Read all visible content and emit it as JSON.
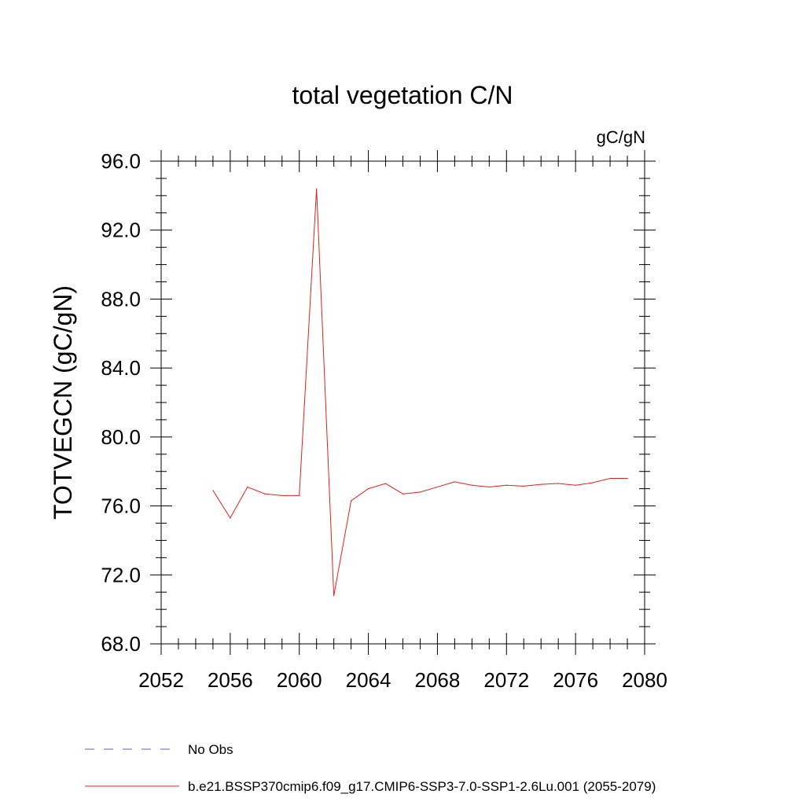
{
  "chart_data": {
    "type": "line",
    "title": "total vegetation C/N",
    "units_label": "gC/gN",
    "ylabel": "TOTVEGCN  (gC/gN)",
    "xlabel": "",
    "xlim": [
      2052,
      2080
    ],
    "ylim": [
      68,
      96
    ],
    "x_ticks": [
      2052,
      2056,
      2060,
      2064,
      2068,
      2072,
      2076,
      2080
    ],
    "x_tick_labels": [
      "2052",
      "2056",
      "2060",
      "2064",
      "2068",
      "2072",
      "2076",
      "2080"
    ],
    "y_ticks": [
      68,
      72,
      76,
      80,
      84,
      88,
      92,
      96
    ],
    "y_tick_labels": [
      "68.0",
      "72.0",
      "76.0",
      "80.0",
      "84.0",
      "88.0",
      "92.0",
      "96.0"
    ],
    "grid": false,
    "legend_position": "bottom",
    "legend": [
      {
        "label": "No Obs",
        "color": "#6a5acd",
        "dash": true
      },
      {
        "label": "b.e21.BSSP370cmip6.f09_g17.CMIP6-SSP3-7.0-SSP1-2.6Lu.001 (2055-2079)",
        "color": "#e0201b",
        "dash": false
      }
    ],
    "series": [
      {
        "color": "#e0201b",
        "x": [
          2055,
          2056,
          2057,
          2058,
          2059,
          2060,
          2061,
          2062,
          2063,
          2064,
          2065,
          2066,
          2067,
          2068,
          2069,
          2070,
          2071,
          2072,
          2073,
          2074,
          2075,
          2076,
          2077,
          2078,
          2079
        ],
        "y": [
          76.9,
          75.3,
          77.1,
          76.7,
          76.6,
          76.6,
          94.4,
          70.8,
          76.3,
          77.0,
          77.3,
          76.7,
          76.8,
          77.1,
          77.4,
          77.2,
          77.1,
          77.2,
          77.15,
          77.25,
          77.3,
          77.2,
          77.35,
          77.6,
          77.6
        ]
      }
    ]
  }
}
